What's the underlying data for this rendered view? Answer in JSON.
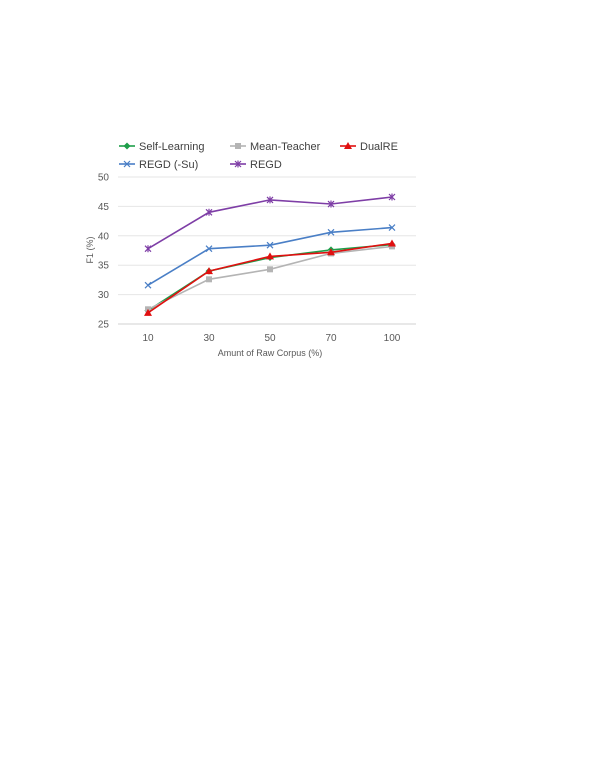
{
  "chart_data": {
    "type": "line",
    "title": "",
    "xlabel": "Amunt of Raw Corpus (%)",
    "ylabel": "F1 (%)",
    "categories": [
      "10",
      "30",
      "50",
      "70",
      "100"
    ],
    "ylim": [
      25,
      50
    ],
    "yticks": [
      "25",
      "30",
      "35",
      "40",
      "45",
      "50"
    ],
    "grid": true,
    "legend_position": "top",
    "series": [
      {
        "name": "Self-Learning",
        "values": [
          27.3,
          34.0,
          36.3,
          37.6,
          38.5
        ],
        "color": "#1e9e4a",
        "marker": "diamond"
      },
      {
        "name": "Mean-Teacher",
        "values": [
          27.5,
          32.6,
          34.3,
          37.0,
          38.2
        ],
        "color": "#b4b4b4",
        "marker": "square"
      },
      {
        "name": "DualRE",
        "values": [
          26.9,
          34.0,
          36.5,
          37.2,
          38.7
        ],
        "color": "#e01010",
        "marker": "triangle"
      },
      {
        "name": "REGD (-Su)",
        "values": [
          31.6,
          37.8,
          38.4,
          40.6,
          41.4
        ],
        "color": "#4a7fc6",
        "marker": "x"
      },
      {
        "name": "REGD",
        "values": [
          37.8,
          44.0,
          46.1,
          45.4,
          46.6
        ],
        "color": "#7e3ea6",
        "marker": "star"
      }
    ]
  }
}
